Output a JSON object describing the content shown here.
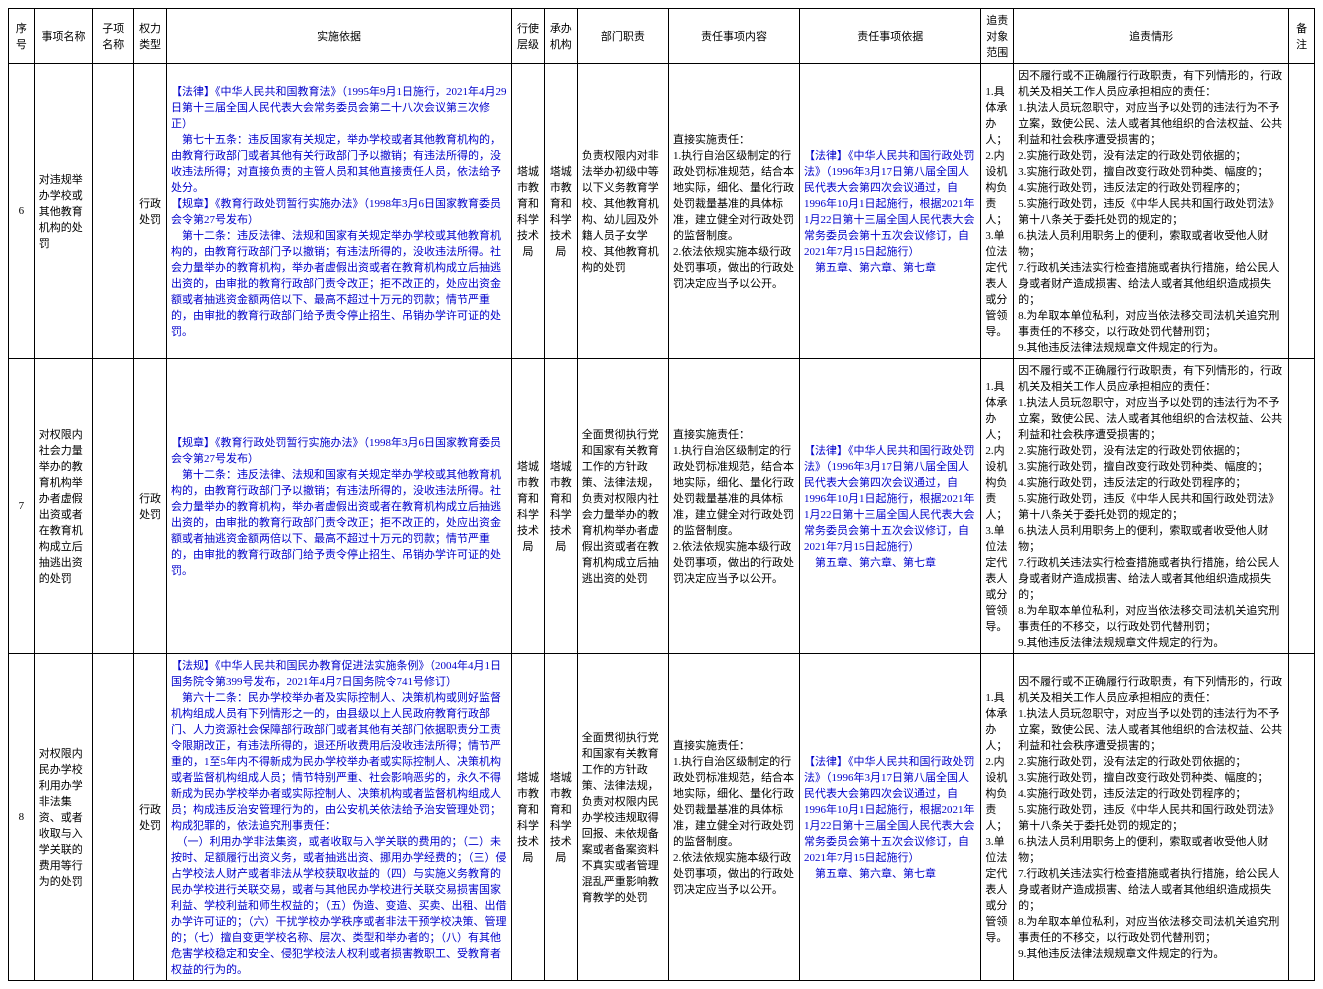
{
  "headers": {
    "seq": "序号",
    "name": "事项名称",
    "sub": "子项名称",
    "power": "权力类型",
    "basis": "实施依据",
    "level": "行使层级",
    "org": "承办机构",
    "duty": "部门职责",
    "content": "责任事项内容",
    "evidence": "责任事项依据",
    "scope": "追责对象范围",
    "pursue": "追责情形",
    "remark": "备注"
  },
  "rows": [
    {
      "seq": "6",
      "name": "对违规举办学校或其他教育机构的处罚",
      "sub": "",
      "power": "行政处罚",
      "basis": "【法律】《中华人民共和国教育法》（1995年9月1日施行，2021年4月29日第十三届全国人民代表大会常务委员会第二十八次会议第三次修正）\n　第七十五条：违反国家有关规定，举办学校或者其他教育机构的，由教育行政部门或者其他有关行政部门予以撤销；有违法所得的，没收违法所得；对直接负责的主管人员和其他直接责任人员，依法给予处分。\n【规章】《教育行政处罚暂行实施办法》（1998年3月6日国家教育委员会令第27号发布）\n　第十二条：违反法律、法规和国家有关规定举办学校或其他教育机构的，由教育行政部门予以撤销；有违法所得的，没收违法所得。社会力量举办的教育机构，举办者虚假出资或者在教育机构成立后抽逃出资的，由审批的教育行政部门责令改正；拒不改正的，处应出资金额或者抽逃资金额两倍以下、最高不超过十万元的罚款；情节严重的，由审批的教育行政部门给予责令停止招生、吊销办学许可证的处罚。",
      "level": "塔城市教育和科学技术局",
      "org": "塔城市教育和科学技术局",
      "duty": "负责权限内对非法举办初级中等以下义务教育学校、其他教育机构、幼儿园及外籍人员子女学校、其他教育机构的处罚",
      "content": "直接实施责任：\n1.执行自治区级制定的行政处罚标准规范，结合本地实际，细化、量化行政处罚裁量基准的具体标准，建立健全对行政处罚的监督制度。\n2.依法依规实施本级行政处罚事项，做出的行政处罚决定应当予以公开。",
      "evidence": "【法律】《中华人民共和国行政处罚法》（1996年3月17日第八届全国人民代表大会第四次会议通过，自1996年10月1日起施行，根据2021年1月22日第十三届全国人民代表大会常务委员会第十五次会议修订，自2021年7月15日起施行）\n　第五章、第六章、第七章",
      "scope": "1.具体承办人；\n2.内设机构负责人；\n3.单位法定代表人或分管领导。",
      "pursue": "因不履行或不正确履行行政职责，有下列情形的，行政机关及相关工作人员应承担相应的责任：\n1.执法人员玩忽职守，对应当予以处罚的违法行为不予立案，致使公民、法人或者其他组织的合法权益、公共利益和社会秩序遭受损害的；\n2.实施行政处罚，没有法定的行政处罚依据的；\n3.实施行政处罚，擅自改变行政处罚种类、幅度的；\n4.实施行政处罚，违反法定的行政处罚程序的；\n5.实施行政处罚，违反《中华人民共和国行政处罚法》第十八条关于委托处罚的规定的；\n6.执法人员利用职务上的便利，索取或者收受他人财物；\n7.行政机关违法实行检查措施或者执行措施，给公民人身或者财产造成损害、给法人或者其他组织造成损失的；\n8.为牟取本单位私利，对应当依法移交司法机关追究刑事责任的不移交，以行政处罚代替刑罚；\n9.其他违反法律法规规章文件规定的行为。"
    },
    {
      "seq": "7",
      "name": "对权限内社会力量举办的教育机构举办者虚假出资或者在教育机构成立后抽逃出资的处罚",
      "sub": "",
      "power": "行政处罚",
      "basis": "【规章】《教育行政处罚暂行实施办法》（1998年3月6日国家教育委员会令第27号发布）\n　第十二条：违反法律、法规和国家有关规定举办学校或其他教育机构的，由教育行政部门予以撤销；有违法所得的，没收违法所得。社会力量举办的教育机构，举办者虚假出资或者在教育机构成立后抽逃出资的，由审批的教育行政部门责令改正；拒不改正的，处应出资金额或者抽逃资金额两倍以下、最高不超过十万元的罚款；情节严重的，由审批的教育行政部门给予责令停止招生、吊销办学许可证的处罚。",
      "level": "塔城市教育和科学技术局",
      "org": "塔城市教育和科学技术局",
      "duty": "全面贯彻执行党和国家有关教育工作的方针政策、法律法规，负责对权限内社会力量举办的教育机构举办者虚假出资或者在教育机构成立后抽逃出资的处罚",
      "content": "直接实施责任：\n1.执行自治区级制定的行政处罚标准规范，结合本地实际，细化、量化行政处罚裁量基准的具体标准，建立健全对行政处罚的监督制度。\n2.依法依规实施本级行政处罚事项，做出的行政处罚决定应当予以公开。",
      "evidence": "【法律】《中华人民共和国行政处罚法》（1996年3月17日第八届全国人民代表大会第四次会议通过，自1996年10月1日起施行，根据2021年1月22日第十三届全国人民代表大会常务委员会第十五次会议修订，自2021年7月15日起施行）\n　第五章、第六章、第七章",
      "scope": "1.具体承办人；\n2.内设机构负责人；\n3.单位法定代表人或分管领导。",
      "pursue": "因不履行或不正确履行行政职责，有下列情形的，行政机关及相关工作人员应承担相应的责任：\n1.执法人员玩忽职守，对应当予以处罚的违法行为不予立案，致使公民、法人或者其他组织的合法权益、公共利益和社会秩序遭受损害的；\n2.实施行政处罚，没有法定的行政处罚依据的；\n3.实施行政处罚，擅自改变行政处罚种类、幅度的；\n4.实施行政处罚，违反法定的行政处罚程序的；\n5.实施行政处罚，违反《中华人民共和国行政处罚法》第十八条关于委托处罚的规定的；\n6.执法人员利用职务上的便利，索取或者收受他人财物；\n7.行政机关违法实行检查措施或者执行措施，给公民人身或者财产造成损害、给法人或者其他组织造成损失的；\n8.为牟取本单位私利，对应当依法移交司法机关追究刑事责任的不移交，以行政处罚代替刑罚；\n9.其他违反法律法规规章文件规定的行为。"
    },
    {
      "seq": "8",
      "name": "对权限内民办学校利用办学非法集资、或者收取与入学关联的费用等行为的处罚",
      "sub": "",
      "power": "行政处罚",
      "basis": "【法规】《中华人民共和国民办教育促进法实施条例》（2004年4月1日国务院令第399号发布，2021年4月7日国务院令741号修订）\n　第六十二条：民办学校举办者及实际控制人、决策机构或则好监督机构组成人员有下列情形之一的，由县级以上人民政府教育行政部门、人力资源社会保障部行政部门或者其他有关部门依据职责分工责令限期改正，有违法所得的，退还所收费用后没收违法所得；情节严重的，1至5年内不得新成为民办学校举办者或实际控制人、决策机构或者监督机构组成人员；情节特别严重、社会影响恶劣的，永久不得新成为民办学校举办者或实际控制人、决策机构或者监督机构组成人员；构成违反治安管理行为的，由公安机关依法给予治安管理处罚；构成犯罪的，依法追究刑事责任：\n　（一）利用办学非法集资，或者收取与入学关联的费用的；（二）未按时、足额履行出资义务，或者抽逃出资、挪用办学经费的；（三）侵占学校法人财产或者非法从学校获取收益的（四）与实施义务教育的民办学校进行关联交易，或者与其他民办学校进行关联交易损害国家利益、学校利益和师生权益的；（五）伪造、变造、买卖、出租、出借办学许可证的；（六）干扰学校办学秩序或者非法干预学校决策、管理的；（七）擅自变更学校名称、层次、类型和举办者的；（八）有其他危害学校稳定和安全、侵犯学校法人权利或者损害教职工、受教育者权益的行为的。",
      "level": "塔城市教育和科学技术局",
      "org": "塔城市教育和科学技术局",
      "duty": "全面贯彻执行党和国家有关教育工作的方针政策、法律法规，负责对权限内民办学校违规取得回报、未依规备案或者备案资料不真实或者管理混乱严重影响教育教学的处罚",
      "content": "直接实施责任：\n1.执行自治区级制定的行政处罚标准规范，结合本地实际，细化、量化行政处罚裁量基准的具体标准，建立健全对行政处罚的监督制度。\n2.依法依规实施本级行政处罚事项，做出的行政处罚决定应当予以公开。",
      "evidence": "【法律】《中华人民共和国行政处罚法》（1996年3月17日第八届全国人民代表大会第四次会议通过，自1996年10月1日起施行，根据2021年1月22日第十三届全国人民代表大会常务委员会第十五次会议修订，自2021年7月15日起施行）\n　第五章、第六章、第七章",
      "scope": "1.具体承办人；\n2.内设机构负责人；\n3.单位法定代表人或分管领导。",
      "pursue": "因不履行或不正确履行行政职责，有下列情形的，行政机关及相关工作人员应承担相应的责任：\n1.执法人员玩忽职守，对应当予以处罚的违法行为不予立案，致使公民、法人或者其他组织的合法权益、公共利益和社会秩序遭受损害的；\n2.实施行政处罚，没有法定的行政处罚依据的；\n3.实施行政处罚，擅自改变行政处罚种类、幅度的；\n4.实施行政处罚，违反法定的行政处罚程序的；\n5.实施行政处罚，违反《中华人民共和国行政处罚法》第十八条关于委托处罚的规定的；\n6.执法人员利用职务上的便利，索取或者收受他人财物；\n7.行政机关违法实行检查措施或者执行措施，给公民人身或者财产造成损害、给法人或者其他组织造成损失的；\n8.为牟取本单位私利，对应当依法移交司法机关追究刑事责任的不移交，以行政处罚代替刑罚；\n9.其他违反法律法规规章文件规定的行为。"
    }
  ]
}
